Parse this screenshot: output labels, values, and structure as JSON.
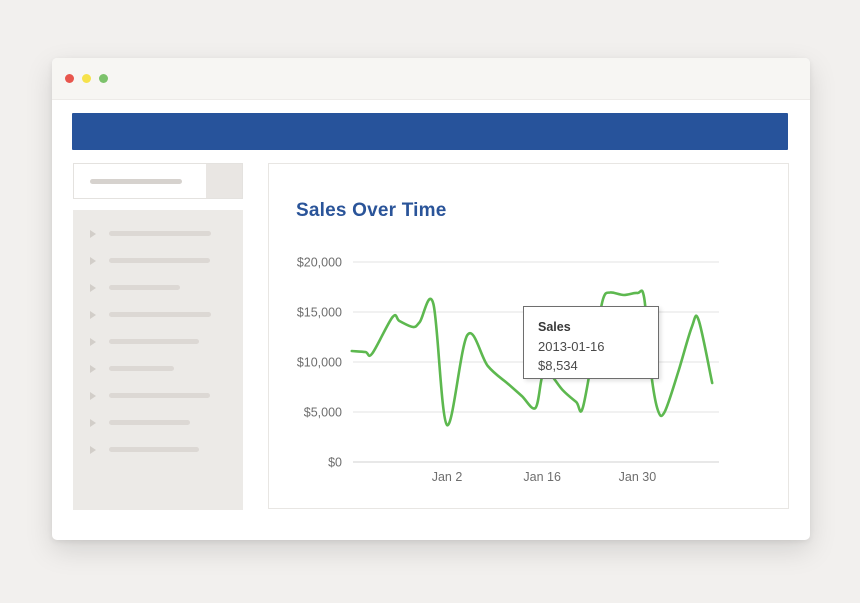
{
  "window": {
    "controls": [
      {
        "name": "close",
        "color": "#e8564d"
      },
      {
        "name": "minimize",
        "color": "#f6e24b"
      },
      {
        "name": "zoom",
        "color": "#7cc26b"
      }
    ]
  },
  "header": {
    "color": "#27539b"
  },
  "sidebar": {
    "search": {
      "placeholder_bar_width": 92
    },
    "items": [
      {
        "placeholder_width": 102
      },
      {
        "placeholder_width": 101
      },
      {
        "placeholder_width": 71
      },
      {
        "placeholder_width": 102
      },
      {
        "placeholder_width": 90
      },
      {
        "placeholder_width": 65
      },
      {
        "placeholder_width": 101
      },
      {
        "placeholder_width": 81
      },
      {
        "placeholder_width": 90
      }
    ]
  },
  "chart": {
    "title": "Sales Over Time",
    "title_color": "#2a5499",
    "tooltip": {
      "series": "Sales",
      "date": "2013-01-16",
      "value": "$8,534"
    }
  },
  "chart_data": {
    "type": "line",
    "title": "Sales Over Time",
    "grid": true,
    "legend_position": "none",
    "ylim": [
      0,
      20000
    ],
    "line_color": "#5db84f",
    "grid_color": "#e3e3e3",
    "axis_color": "#d2d2d2",
    "x_origin": "2013-01-02",
    "y_ticks": [
      {
        "value": 0,
        "label": "$0"
      },
      {
        "value": 5000,
        "label": "$5,000"
      },
      {
        "value": 10000,
        "label": "$10,000"
      },
      {
        "value": 15000,
        "label": "$15,000"
      },
      {
        "value": 20000,
        "label": "$20,000"
      }
    ],
    "x_ticks": [
      {
        "date": "2013-01-02",
        "label": "Jan 2"
      },
      {
        "date": "2013-01-16",
        "label": "Jan 16"
      },
      {
        "date": "2013-01-30",
        "label": "Jan 30"
      }
    ],
    "series": [
      {
        "name": "Sales",
        "points": [
          [
            "2012-12-19",
            11100
          ],
          [
            "2012-12-21",
            11000
          ],
          [
            "2012-12-22",
            10850
          ],
          [
            "2012-12-25",
            14500
          ],
          [
            "2012-12-26",
            14100
          ],
          [
            "2012-12-28",
            13500
          ],
          [
            "2012-12-29",
            14000
          ],
          [
            "2012-12-31",
            15800
          ],
          [
            "2013-01-02",
            3700
          ],
          [
            "2013-01-05",
            12700
          ],
          [
            "2013-01-08",
            9600
          ],
          [
            "2013-01-11",
            7800
          ],
          [
            "2013-01-13",
            6600
          ],
          [
            "2013-01-15",
            5400
          ],
          [
            "2013-01-16",
            8534
          ],
          [
            "2013-01-17",
            8900
          ],
          [
            "2013-01-19",
            7200
          ],
          [
            "2013-01-21",
            6000
          ],
          [
            "2013-01-22",
            5500
          ],
          [
            "2013-01-24",
            13000
          ],
          [
            "2013-01-25",
            16400
          ],
          [
            "2013-01-26",
            16950
          ],
          [
            "2013-01-28",
            16700
          ],
          [
            "2013-01-30",
            16900
          ],
          [
            "2013-01-31",
            16400
          ],
          [
            "2013-02-01",
            9000
          ],
          [
            "2013-02-02",
            5200
          ],
          [
            "2013-02-03",
            5000
          ],
          [
            "2013-02-05",
            9000
          ],
          [
            "2013-02-07",
            13500
          ],
          [
            "2013-02-08",
            14200
          ],
          [
            "2013-02-10",
            7900
          ]
        ]
      }
    ],
    "highlighted_point": {
      "series": "Sales",
      "date": "2013-01-16",
      "value": 8534
    }
  }
}
